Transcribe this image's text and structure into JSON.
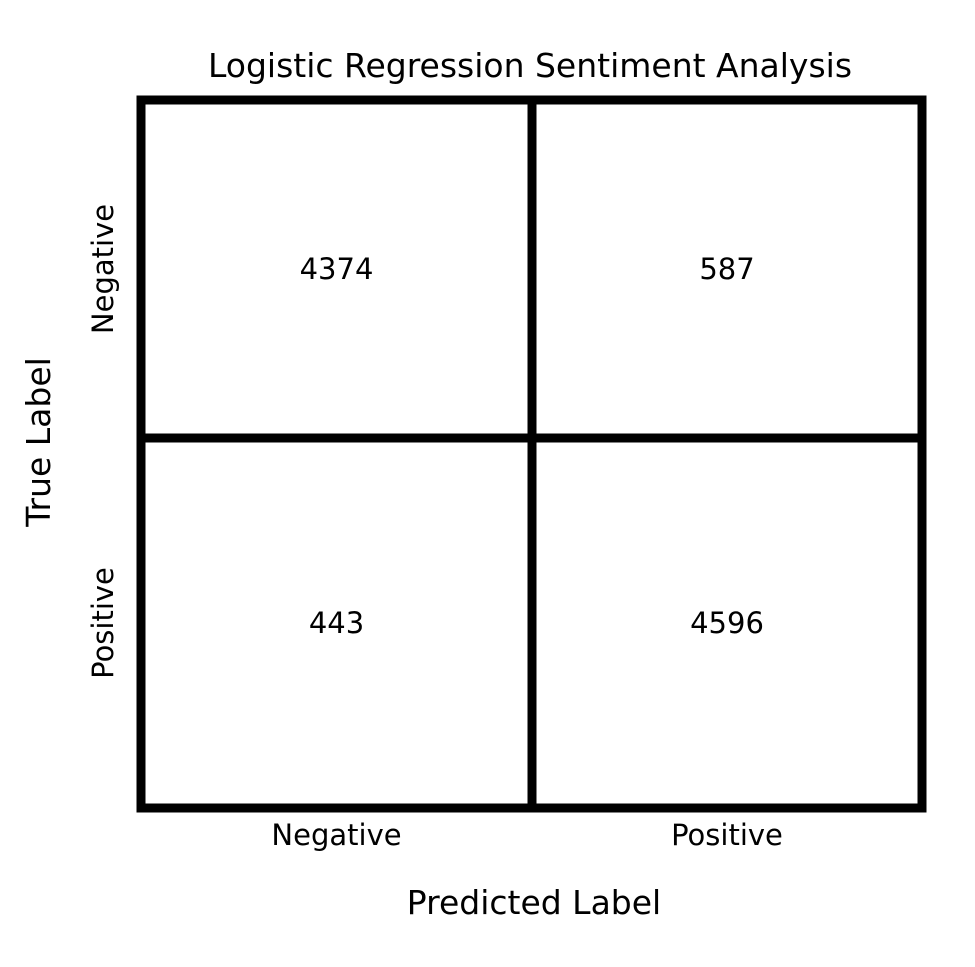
{
  "chart_data": {
    "type": "heatmap",
    "title": "Logistic Regression Sentiment Analysis",
    "xlabel": "Predicted Label",
    "ylabel": "True Label",
    "x_categories": [
      "Negative",
      "Positive"
    ],
    "y_categories": [
      "Negative",
      "Positive"
    ],
    "values": [
      [
        4374,
        587
      ],
      [
        443,
        4596
      ]
    ],
    "colors": {
      "cell_fill": "#ffffff",
      "grid": "#000000",
      "text": "#000000"
    }
  }
}
